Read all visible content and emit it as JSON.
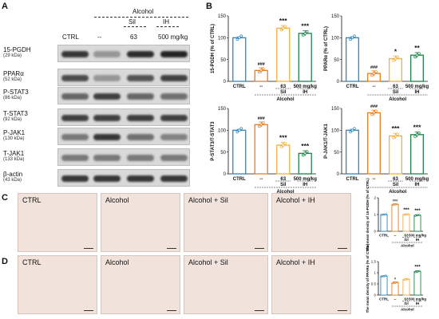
{
  "panels": {
    "a": "A",
    "b": "B",
    "c": "C",
    "d": "D"
  },
  "western": {
    "group_header": "Alcohol",
    "sub_sil": "Sil",
    "sub_ih": "IH",
    "lanes": [
      "CTRL",
      "--",
      "63",
      "500 mg/kg"
    ],
    "rows": [
      {
        "label": "15-PGDH",
        "kda": "(29 kDa)",
        "intensity": [
          0.85,
          0.35,
          0.9,
          0.95
        ]
      },
      {
        "label": "PPARα",
        "kda": "(52 kDa)",
        "intensity": [
          0.75,
          0.35,
          0.7,
          0.8
        ]
      },
      {
        "label": "P-STAT3",
        "kda": "(86 kDa)",
        "intensity": [
          0.6,
          0.8,
          0.6,
          0.55
        ]
      },
      {
        "label": "T-STAT3",
        "kda": "(92 kDa)",
        "intensity": [
          0.8,
          0.8,
          0.8,
          0.8
        ]
      },
      {
        "label": "P-JAK1",
        "kda": "(130 kDa)",
        "intensity": [
          0.5,
          0.85,
          0.55,
          0.45
        ]
      },
      {
        "label": "T-JAK1",
        "kda": "(133 kDa)",
        "intensity": [
          0.5,
          0.5,
          0.5,
          0.5
        ]
      },
      {
        "label": "β-actin",
        "kda": "(43 kDa)",
        "intensity": [
          0.85,
          0.85,
          0.85,
          0.85
        ]
      }
    ]
  },
  "colors": {
    "ctrl": "#2e86c1",
    "alcohol": "#e67e22",
    "sil": "#f5b041",
    "ih": "#1e8449"
  },
  "bar_xticks": [
    "CTRL",
    "--",
    "63",
    "500 mg/kg"
  ],
  "bar_xsub": {
    "sil": "Sil",
    "ih": "IH",
    "group": "Alcohol"
  },
  "chart_data": [
    {
      "type": "bar",
      "ylabel": "15-PGDH (% of CTRL)",
      "ylim": [
        0,
        150
      ],
      "yticks": [
        0,
        50,
        100,
        150
      ],
      "values": [
        100,
        25,
        122,
        110
      ],
      "annotations": [
        "",
        "###",
        "***",
        "***"
      ]
    },
    {
      "type": "bar",
      "ylabel": "PPARα (% of CTRL)",
      "ylim": [
        0,
        150
      ],
      "yticks": [
        0,
        50,
        100,
        150
      ],
      "values": [
        100,
        18,
        52,
        60
      ],
      "annotations": [
        "",
        "###",
        "*",
        "**"
      ]
    },
    {
      "type": "bar",
      "ylabel": "P-STAT3/T-STAT3",
      "ylim": [
        0,
        150
      ],
      "yticks": [
        0,
        50,
        100,
        150
      ],
      "values": [
        100,
        113,
        66,
        47
      ],
      "annotations": [
        "",
        "###",
        "***",
        "***"
      ]
    },
    {
      "type": "bar",
      "ylabel": "P-JAK1/T-JAK1",
      "ylim": [
        0,
        150
      ],
      "yticks": [
        0,
        50,
        100,
        150
      ],
      "values": [
        100,
        140,
        87,
        90
      ],
      "annotations": [
        "",
        "###",
        "***",
        "***"
      ]
    },
    {
      "type": "bar",
      "ylabel": "The mean density of 15-PGDH (% of CTRL)",
      "ylim": [
        0,
        2
      ],
      "yticks": [
        0,
        1,
        2
      ],
      "values": [
        1.0,
        1.6,
        1.0,
        0.95
      ],
      "annotations": [
        "",
        "###",
        "***",
        "***"
      ]
    },
    {
      "type": "bar",
      "ylabel": "The mean density of PPARα (% of CTRL)",
      "ylim": [
        0,
        1.5
      ],
      "yticks": [
        0,
        0.5,
        1.0,
        1.5
      ],
      "values": [
        0.85,
        0.55,
        0.7,
        1.05
      ],
      "annotations": [
        "",
        "#",
        "",
        "***"
      ]
    }
  ],
  "micrographs": {
    "c": [
      "CTRL",
      "Alcohol",
      "Alcohol + Sil",
      "Alcohol + IH"
    ],
    "d": [
      "CTRL",
      "Alcohol",
      "Alcohol + Sil",
      "Alcohol + IH"
    ]
  }
}
